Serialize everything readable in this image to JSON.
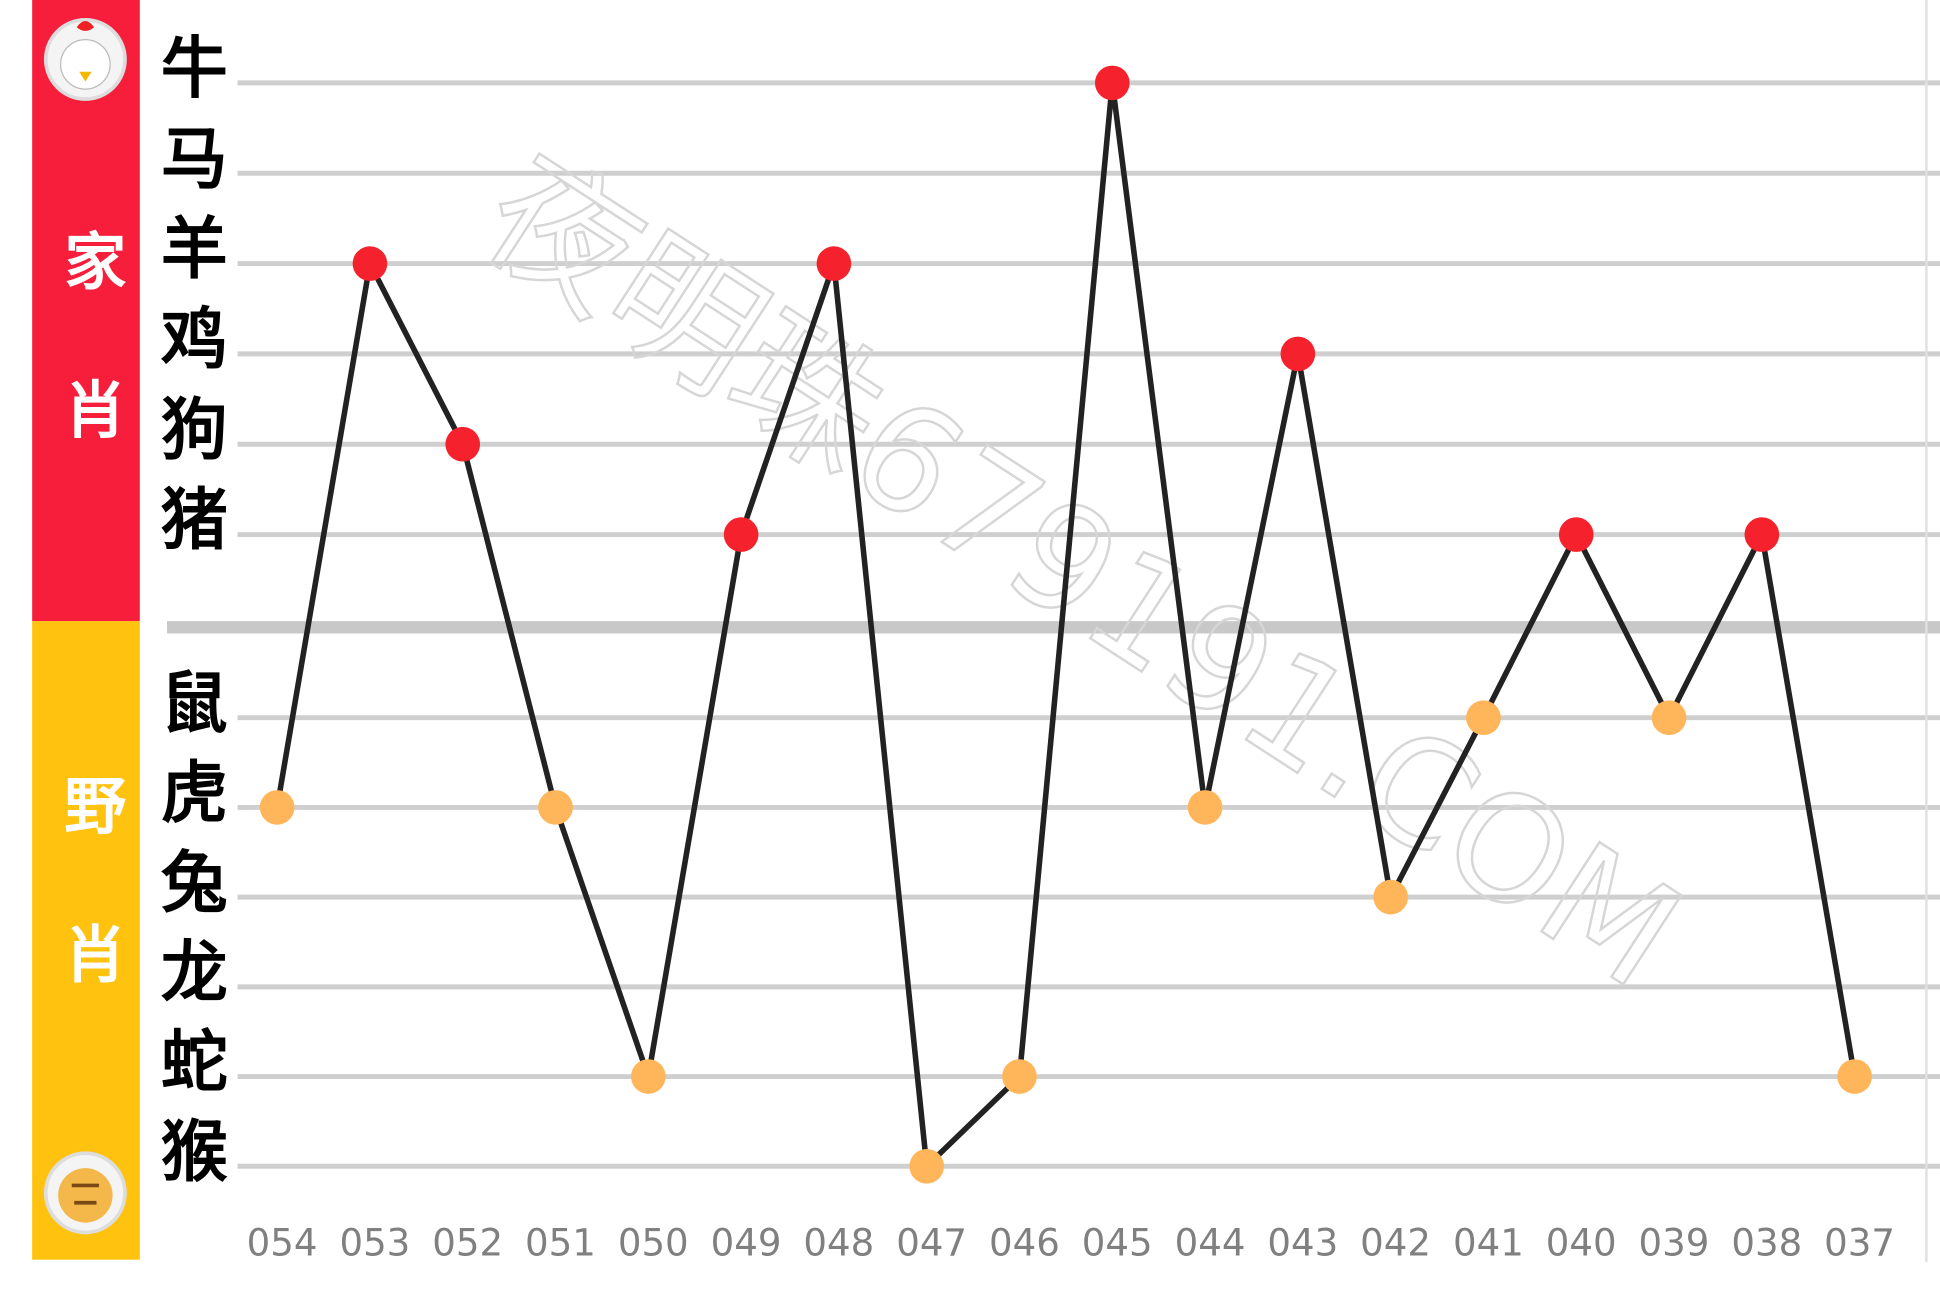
{
  "chart_data": {
    "type": "line",
    "watermark": "夜明珠679191.COM",
    "groups": [
      {
        "label": "家肖",
        "color": "#f71e3c",
        "point_color": "#f5222d",
        "rows": [
          "牛",
          "马",
          "羊",
          "鸡",
          "狗",
          "猪"
        ]
      },
      {
        "label": "野肖",
        "color": "#ffc20e",
        "point_color": "#ffb55a",
        "rows": [
          "鼠",
          "虎",
          "兔",
          "龙",
          "蛇",
          "猴"
        ]
      }
    ],
    "categories": [
      "054",
      "053",
      "052",
      "051",
      "050",
      "049",
      "048",
      "047",
      "046",
      "045",
      "044",
      "043",
      "042",
      "041",
      "040",
      "039",
      "038",
      "037"
    ],
    "series": [
      {
        "color": "#222222",
        "values": [
          "虎",
          "羊",
          "狗",
          "虎",
          "蛇",
          "猪",
          "羊",
          "猴",
          "蛇",
          "牛",
          "虎",
          "鸡",
          "兔",
          "鼠",
          "猪",
          "鼠",
          "猪",
          "蛇"
        ]
      }
    ],
    "grid": true
  }
}
